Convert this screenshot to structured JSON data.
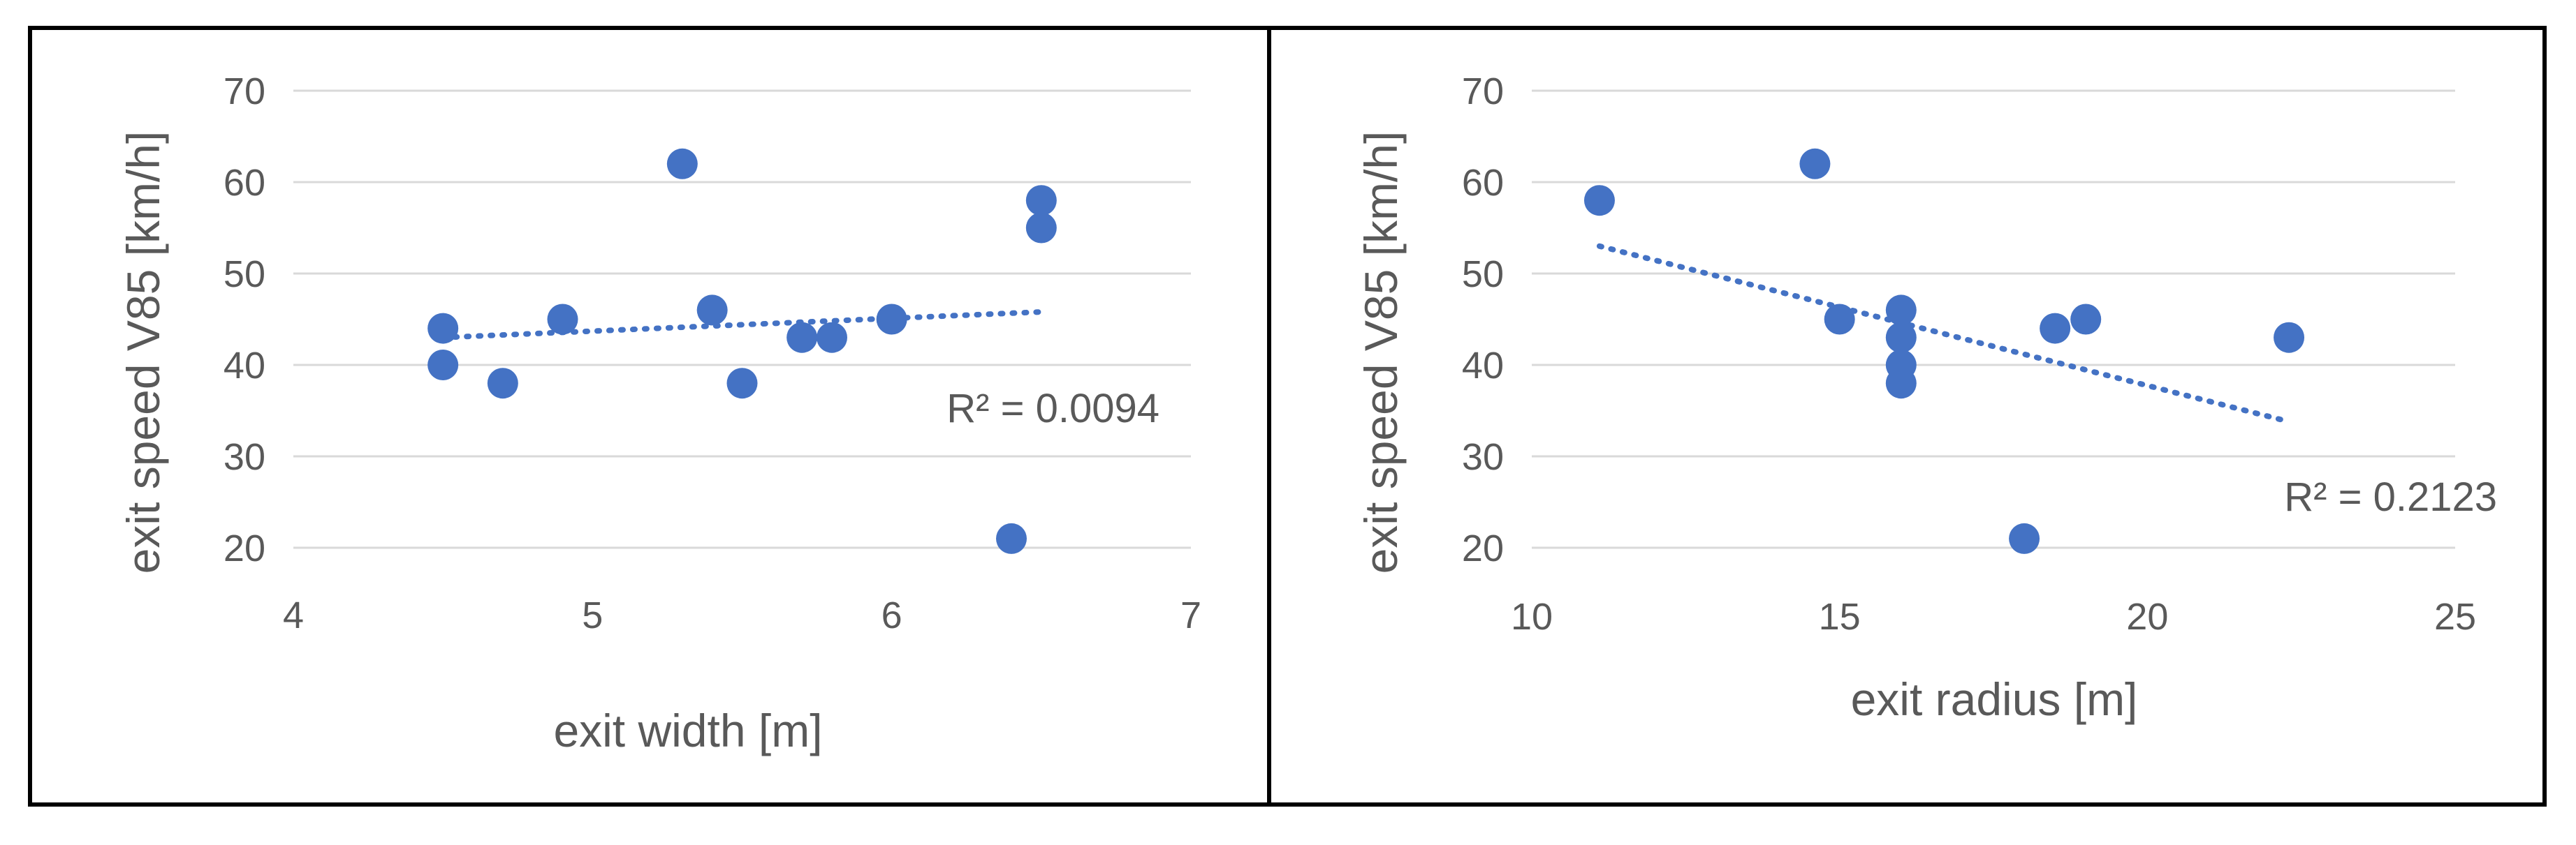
{
  "colors": {
    "marker": "#4472c4",
    "trend": "#4472c4",
    "grid": "#d9d9d9",
    "text": "#595959"
  },
  "chart_data": [
    {
      "type": "scatter",
      "xlabel": "exit width [m]",
      "ylabel": "exit speed V85 [km/h]",
      "xlim": [
        4,
        7
      ],
      "ylim": [
        20,
        70
      ],
      "xticks": [
        "4",
        "5",
        "6",
        "7"
      ],
      "yticks": [
        "20",
        "30",
        "40",
        "50",
        "60",
        "70"
      ],
      "grid": "horizontal",
      "points": [
        {
          "x": 4.5,
          "y": 44
        },
        {
          "x": 4.5,
          "y": 40
        },
        {
          "x": 4.7,
          "y": 38
        },
        {
          "x": 4.9,
          "y": 45
        },
        {
          "x": 5.3,
          "y": 62
        },
        {
          "x": 5.4,
          "y": 46
        },
        {
          "x": 5.5,
          "y": 38
        },
        {
          "x": 5.7,
          "y": 43
        },
        {
          "x": 5.8,
          "y": 43
        },
        {
          "x": 6.0,
          "y": 45
        },
        {
          "x": 6.4,
          "y": 21
        },
        {
          "x": 6.5,
          "y": 58
        },
        {
          "x": 6.5,
          "y": 55
        }
      ],
      "trendline": {
        "type": "linear",
        "x": [
          4.5,
          6.5
        ],
        "y": [
          43.0,
          45.8
        ]
      },
      "annotation": "R² = 0.0094"
    },
    {
      "type": "scatter",
      "xlabel": "exit radius [m]",
      "ylabel": "exit speed V85 [km/h]",
      "xlim": [
        10,
        25
      ],
      "ylim": [
        20,
        70
      ],
      "xticks": [
        "10",
        "15",
        "20",
        "25"
      ],
      "yticks": [
        "20",
        "30",
        "40",
        "50",
        "60",
        "70"
      ],
      "grid": "horizontal",
      "points": [
        {
          "x": 11.1,
          "y": 58
        },
        {
          "x": 14.6,
          "y": 62
        },
        {
          "x": 15.0,
          "y": 45
        },
        {
          "x": 16.0,
          "y": 46
        },
        {
          "x": 16.0,
          "y": 43
        },
        {
          "x": 16.0,
          "y": 40
        },
        {
          "x": 16.0,
          "y": 38
        },
        {
          "x": 18.0,
          "y": 21
        },
        {
          "x": 18.5,
          "y": 44
        },
        {
          "x": 19.0,
          "y": 45
        },
        {
          "x": 22.3,
          "y": 43
        }
      ],
      "trendline": {
        "type": "linear",
        "x": [
          11.1,
          22.3
        ],
        "y": [
          53.0,
          33.8
        ]
      },
      "annotation": "R² = 0.2123"
    }
  ]
}
